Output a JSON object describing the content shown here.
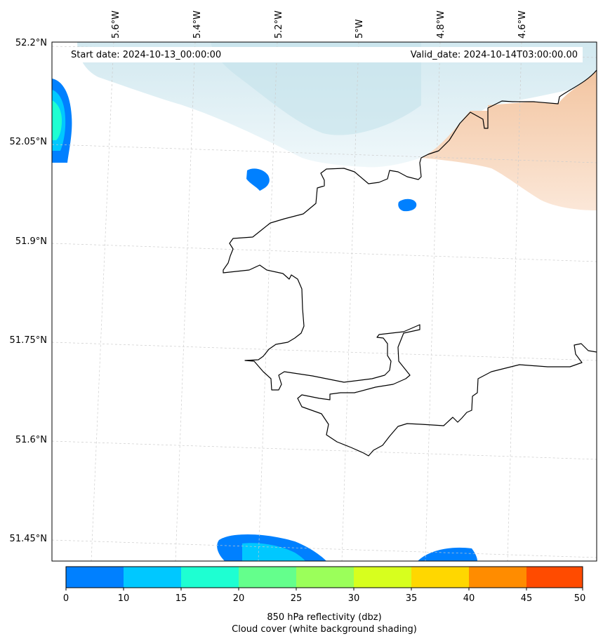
{
  "map": {
    "start_date": "Start date: 2024-10-13_00:00:00",
    "valid_date": "Valid_date: 2024-10-14T03:00:00.00",
    "lon_labels": [
      "5.6°W",
      "5.4°W",
      "5.2°W",
      "5°W",
      "4.8°W",
      "4.6°W"
    ],
    "lat_labels": [
      "52.2°N",
      "52.05°N",
      "51.9°N",
      "51.75°N",
      "51.6°N",
      "51.45°N"
    ]
  },
  "colorbar": {
    "title_line1": "850 hPa reflectivity (dbz)",
    "title_line2": "Cloud cover (white background shading)",
    "ticks": [
      "0",
      "10",
      "15",
      "20",
      "25",
      "30",
      "35",
      "40",
      "45",
      "50"
    ],
    "colors": [
      "#0080ff",
      "#00c8ff",
      "#1effd2",
      "#64ff8c",
      "#9bff5a",
      "#d7ff1e",
      "#ffd700",
      "#ff8c00",
      "#ff4b00"
    ]
  },
  "colors": {
    "coast": "#000000",
    "cloud": "#d4eaf0",
    "warm_cloud": "#f6cdaa",
    "precip_0_10": "#0080ff",
    "precip_10_15": "#00c8ff",
    "precip_15_20": "#1effd2"
  }
}
